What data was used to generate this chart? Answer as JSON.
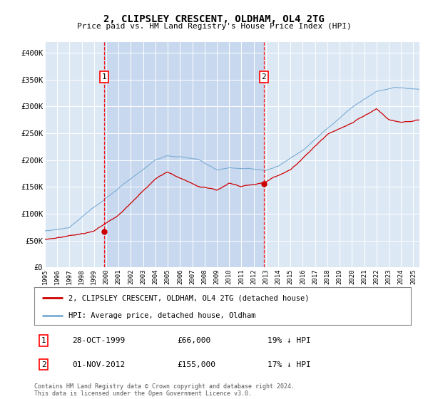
{
  "title": "2, CLIPSLEY CRESCENT, OLDHAM, OL4 2TG",
  "subtitle": "Price paid vs. HM Land Registry's House Price Index (HPI)",
  "plot_bg_color": "#dde8f5",
  "shaded_region_color": "#c8d8ee",
  "line1_color": "#cc0000",
  "line2_color": "#7aadd4",
  "sale1_date_num": 1999.83,
  "sale1_price": 66000,
  "sale2_date_num": 2012.83,
  "sale2_price": 155000,
  "xmin": 1995.0,
  "xmax": 2025.5,
  "ymin": 0,
  "ymax": 420000,
  "yticks": [
    0,
    50000,
    100000,
    150000,
    200000,
    250000,
    300000,
    350000,
    400000
  ],
  "ytick_labels": [
    "£0",
    "£50K",
    "£100K",
    "£150K",
    "£200K",
    "£250K",
    "£300K",
    "£350K",
    "£400K"
  ],
  "legend_label1": "2, CLIPSLEY CRESCENT, OLDHAM, OL4 2TG (detached house)",
  "legend_label2": "HPI: Average price, detached house, Oldham",
  "annotation1_label": "1",
  "annotation1_date": "28-OCT-1999",
  "annotation1_price": "£66,000",
  "annotation1_hpi": "19% ↓ HPI",
  "annotation2_label": "2",
  "annotation2_date": "01-NOV-2012",
  "annotation2_price": "£155,000",
  "annotation2_hpi": "17% ↓ HPI",
  "footer": "Contains HM Land Registry data © Crown copyright and database right 2024.\nThis data is licensed under the Open Government Licence v3.0."
}
